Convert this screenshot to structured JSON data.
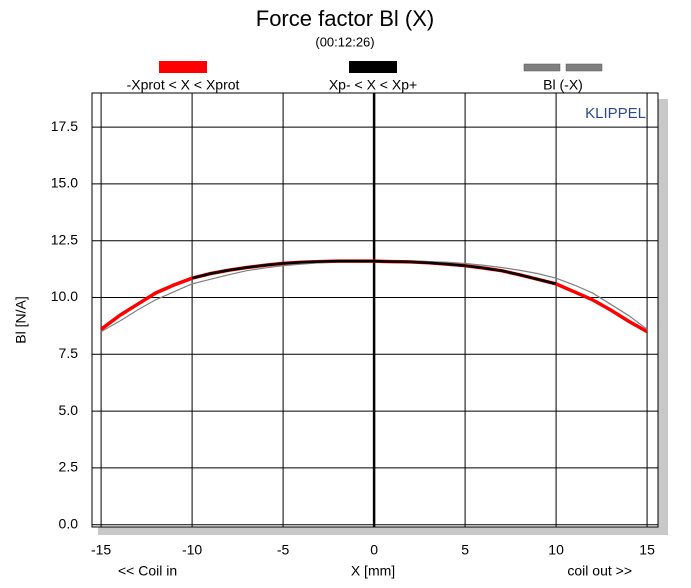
{
  "chart_data": {
    "type": "line",
    "title": "Force factor Bl (X)",
    "subtitle": "(00:12:26)",
    "x_label": "X [mm]",
    "y_label": "Bl [N/A]",
    "annotations": [
      "KLIPPEL",
      "<< Coil in",
      "coil out >>"
    ],
    "x": [
      -15,
      -14,
      -13,
      -12,
      -11,
      -10,
      -9,
      -8,
      -7,
      -6,
      -5,
      -4,
      -3,
      -2,
      -1,
      0,
      1,
      2,
      3,
      4,
      5,
      6,
      7,
      8,
      9,
      10,
      11,
      12,
      13,
      14,
      15
    ],
    "series": [
      {
        "name": "-Xprot < X < Xprot",
        "color": "#ff0000",
        "dashed": false,
        "values": [
          8.6,
          9.2,
          9.7,
          10.2,
          10.55,
          10.85,
          11.05,
          11.2,
          11.32,
          11.42,
          11.5,
          11.55,
          11.58,
          11.6,
          11.6,
          11.6,
          11.58,
          11.57,
          11.53,
          11.47,
          11.4,
          11.3,
          11.18,
          11.0,
          10.8,
          10.6,
          10.25,
          9.9,
          9.45,
          8.95,
          8.5
        ]
      },
      {
        "name": "Xp- < X < Xp+",
        "color": "#000000",
        "dashed": false,
        "x": [
          -10,
          -9,
          -8,
          -7,
          -6,
          -5,
          -4,
          -3,
          -2,
          -1,
          0,
          1,
          2,
          3,
          4,
          5,
          6,
          7,
          8,
          9,
          10
        ],
        "values": [
          10.85,
          11.05,
          11.2,
          11.32,
          11.42,
          11.5,
          11.55,
          11.58,
          11.6,
          11.6,
          11.6,
          11.58,
          11.57,
          11.53,
          11.47,
          11.4,
          11.3,
          11.18,
          11.0,
          10.8,
          10.6
        ]
      },
      {
        "name": "Bl (-X)",
        "color": "#808080",
        "dashed": true,
        "values": [
          8.5,
          8.95,
          9.45,
          9.9,
          10.25,
          10.6,
          10.8,
          11.0,
          11.18,
          11.3,
          11.4,
          11.47,
          11.53,
          11.57,
          11.58,
          11.6,
          11.6,
          11.6,
          11.58,
          11.55,
          11.5,
          11.42,
          11.32,
          11.2,
          11.05,
          10.85,
          10.55,
          10.2,
          9.7,
          9.2,
          8.6
        ]
      }
    ],
    "xlim": [
      -15.5,
      15.6
    ],
    "ylim": [
      -0.1,
      19
    ],
    "xticks": [
      -15,
      -10,
      -5,
      0,
      5,
      10,
      15
    ],
    "yticks": [
      {
        "value": 0,
        "label": "0.0"
      },
      2.5,
      {
        "value": 5,
        "label": "5.0"
      },
      7.5,
      {
        "value": 10,
        "label": "10.0"
      },
      12.5,
      {
        "value": 15,
        "label": "15.0"
      },
      17.5
    ],
    "grid": true,
    "legend": "top"
  }
}
